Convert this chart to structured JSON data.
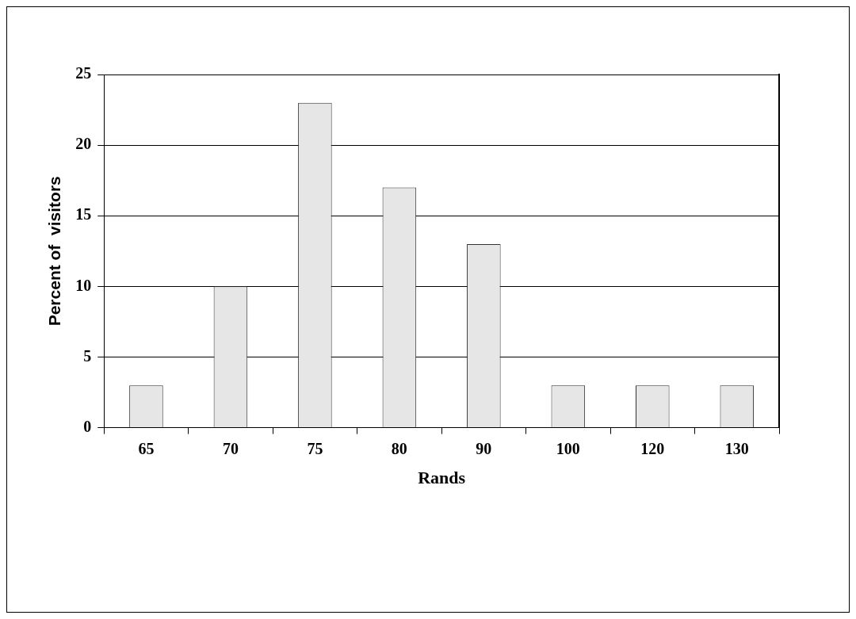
{
  "chart_data": {
    "type": "bar",
    "xlabel": "Rands",
    "ylabel": "Percent of  visitors",
    "categories": [
      "65",
      "70",
      "75",
      "80",
      "90",
      "100",
      "120",
      "130"
    ],
    "values": [
      3,
      10,
      23,
      17,
      13,
      3,
      3,
      3
    ],
    "color": "#e6e6e6",
    "ylim": [
      0,
      25
    ],
    "yticks": [
      0,
      5,
      10,
      15,
      20,
      25
    ],
    "grid": "y",
    "legend": false
  }
}
